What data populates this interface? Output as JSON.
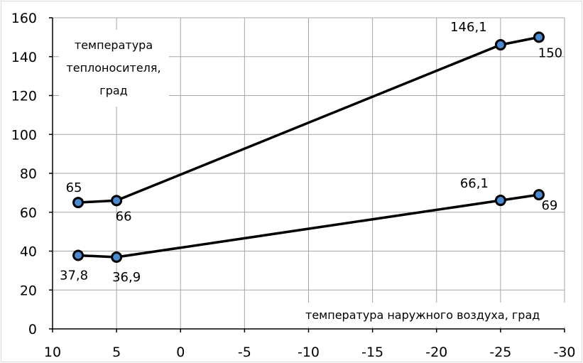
{
  "chart_data": {
    "type": "line",
    "title": "",
    "ylabel_lines": [
      "температура",
      "теплоносителя,",
      "град"
    ],
    "xlabel": "температура наружного воздуха, град",
    "x_ticks": [
      10,
      5,
      0,
      -5,
      -10,
      -15,
      -20,
      -25,
      -30
    ],
    "y_ticks": [
      0,
      20,
      40,
      60,
      80,
      100,
      120,
      140,
      160
    ],
    "xlim": [
      10,
      -30
    ],
    "ylim": [
      0,
      160
    ],
    "x_reversed": true,
    "grid": true,
    "legend": "none",
    "marker_color": "#4a8ad0",
    "line_color": "#000000",
    "series": [
      {
        "values": [
          {
            "x": 8,
            "y": 65,
            "label": "65"
          },
          {
            "x": 5,
            "y": 66,
            "label": "66"
          },
          {
            "x": -25,
            "y": 146.1,
            "label": "146,1"
          },
          {
            "x": -28,
            "y": 150,
            "label": "150"
          }
        ]
      },
      {
        "values": [
          {
            "x": 8,
            "y": 37.8,
            "label": "37,8"
          },
          {
            "x": 5,
            "y": 36.9,
            "label": "36,9"
          },
          {
            "x": -25,
            "y": 66.1,
            "label": "66,1"
          },
          {
            "x": -28,
            "y": 69,
            "label": "69"
          }
        ]
      }
    ]
  }
}
